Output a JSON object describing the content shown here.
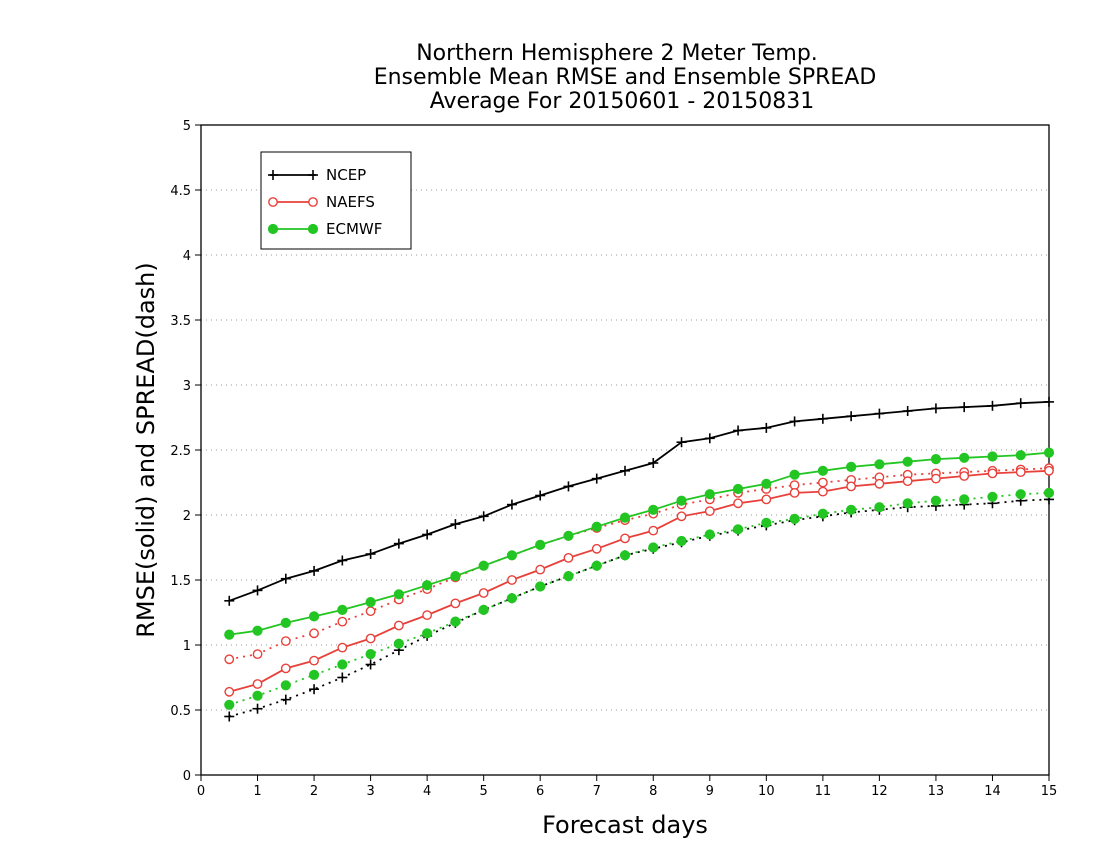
{
  "chart_data": {
    "type": "line",
    "title": [
      "Northern Hemisphere 2 Meter Temp.",
      "Ensemble Mean RMSE and Ensemble SPREAD",
      "Average For 20150601 - 20150831"
    ],
    "xlabel": "Forecast days",
    "ylabel": "RMSE(solid) and SPREAD(dash)",
    "xlim": [
      0,
      15
    ],
    "ylim": [
      0,
      5
    ],
    "xticks": [
      "0",
      "1",
      "2",
      "3",
      "4",
      "5",
      "6",
      "7",
      "8",
      "9",
      "10",
      "11",
      "12",
      "13",
      "14",
      "15"
    ],
    "yticks": [
      "0",
      "0.5",
      "1",
      "1.5",
      "2",
      "2.5",
      "3",
      "3.5",
      "4",
      "4.5",
      "5"
    ],
    "grid": "horizontal-dotted",
    "legend_position": "top-left",
    "x": [
      0.5,
      1,
      1.5,
      2,
      2.5,
      3,
      3.5,
      4,
      4.5,
      5,
      5.5,
      6,
      6.5,
      7,
      7.5,
      8,
      8.5,
      9,
      9.5,
      10,
      10.5,
      11,
      11.5,
      12,
      12.5,
      13,
      13.5,
      14,
      14.5,
      15
    ],
    "series": [
      {
        "name": "NCEP",
        "color": "#000000",
        "marker": "plus",
        "rmse": [
          1.34,
          1.42,
          1.51,
          1.57,
          1.65,
          1.7,
          1.78,
          1.85,
          1.93,
          1.99,
          2.08,
          2.15,
          2.22,
          2.28,
          2.34,
          2.4,
          2.56,
          2.59,
          2.65,
          2.67,
          2.72,
          2.74,
          2.76,
          2.78,
          2.8,
          2.82,
          2.83,
          2.84,
          2.86,
          2.87
        ],
        "spread": [
          0.45,
          0.51,
          0.58,
          0.66,
          0.75,
          0.85,
          0.96,
          1.07,
          1.17,
          1.27,
          1.36,
          1.45,
          1.53,
          1.61,
          1.69,
          1.74,
          1.79,
          1.84,
          1.88,
          1.92,
          1.96,
          1.99,
          2.02,
          2.04,
          2.06,
          2.07,
          2.08,
          2.09,
          2.11,
          2.12
        ]
      },
      {
        "name": "NAEFS",
        "color": "#e8403a",
        "marker": "open-circle",
        "rmse": [
          0.64,
          0.7,
          0.82,
          0.88,
          0.98,
          1.05,
          1.15,
          1.23,
          1.32,
          1.4,
          1.5,
          1.58,
          1.67,
          1.74,
          1.82,
          1.88,
          1.99,
          2.03,
          2.09,
          2.12,
          2.17,
          2.18,
          2.22,
          2.24,
          2.26,
          2.28,
          2.3,
          2.32,
          2.33,
          2.34
        ],
        "spread": [
          0.89,
          0.93,
          1.03,
          1.09,
          1.18,
          1.26,
          1.35,
          1.43,
          1.52,
          1.61,
          1.69,
          1.77,
          1.84,
          1.9,
          1.96,
          2.01,
          2.08,
          2.12,
          2.17,
          2.2,
          2.23,
          2.25,
          2.27,
          2.29,
          2.31,
          2.32,
          2.33,
          2.34,
          2.35,
          2.36
        ]
      },
      {
        "name": "ECMWF",
        "color": "#22c522",
        "marker": "filled-circle",
        "rmse": [
          1.08,
          1.11,
          1.17,
          1.22,
          1.27,
          1.33,
          1.39,
          1.46,
          1.53,
          1.61,
          1.69,
          1.77,
          1.84,
          1.91,
          1.98,
          2.04,
          2.11,
          2.16,
          2.2,
          2.24,
          2.31,
          2.34,
          2.37,
          2.39,
          2.41,
          2.43,
          2.44,
          2.45,
          2.46,
          2.48
        ],
        "spread": [
          0.54,
          0.61,
          0.69,
          0.77,
          0.85,
          0.93,
          1.01,
          1.09,
          1.18,
          1.27,
          1.36,
          1.45,
          1.53,
          1.61,
          1.69,
          1.75,
          1.8,
          1.85,
          1.89,
          1.94,
          1.97,
          2.01,
          2.04,
          2.06,
          2.09,
          2.11,
          2.12,
          2.14,
          2.16,
          2.17
        ]
      }
    ]
  }
}
